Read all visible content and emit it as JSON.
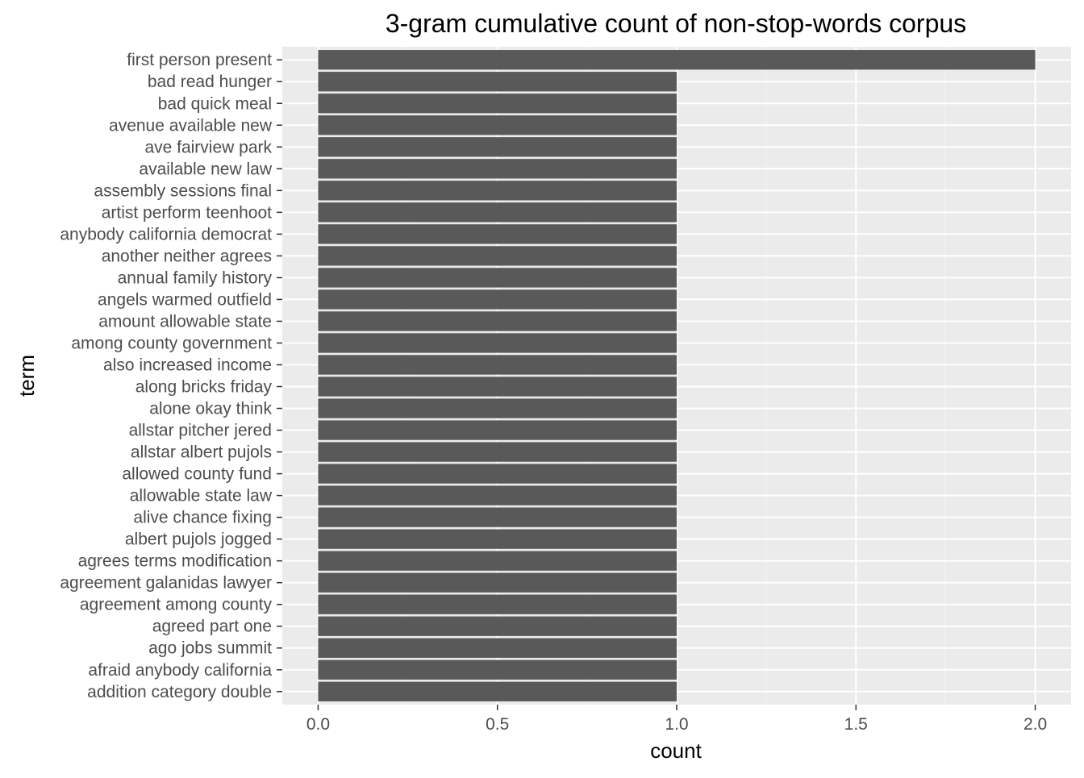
{
  "chart_data": {
    "type": "bar",
    "orientation": "horizontal",
    "title": "3-gram cumulative count of non-stop-words corpus",
    "xlabel": "count",
    "ylabel": "term",
    "xlim": [
      -0.1,
      2.1
    ],
    "x_ticks": [
      "0.0",
      "0.5",
      "1.0",
      "1.5",
      "2.0"
    ],
    "x_tick_values": [
      0,
      0.5,
      1.0,
      1.5,
      2.0
    ],
    "grid": true,
    "categories": [
      "first person present",
      "bad read hunger",
      "bad quick meal",
      "avenue available new",
      "ave fairview park",
      "available new law",
      "assembly sessions final",
      "artist perform teenhoot",
      "anybody california democrat",
      "another neither agrees",
      "annual family history",
      "angels warmed outfield",
      "amount allowable state",
      "among county government",
      "also increased income",
      "along bricks friday",
      "alone okay think",
      "allstar pitcher jered",
      "allstar albert pujols",
      "allowed county fund",
      "allowable state law",
      "alive chance fixing",
      "albert pujols jogged",
      "agrees terms modification",
      "agreement galanidas lawyer",
      "agreement among county",
      "agreed part one",
      "ago jobs summit",
      "afraid anybody california",
      "addition category double"
    ],
    "values": [
      2,
      1,
      1,
      1,
      1,
      1,
      1,
      1,
      1,
      1,
      1,
      1,
      1,
      1,
      1,
      1,
      1,
      1,
      1,
      1,
      1,
      1,
      1,
      1,
      1,
      1,
      1,
      1,
      1,
      1
    ],
    "colors": {
      "bar": "#595959",
      "panel": "#ebebeb",
      "grid_major": "#ffffff",
      "grid_minor": "#f5f5f5",
      "tick_text": "#4d4d4d",
      "tick_mark": "#333333"
    }
  }
}
